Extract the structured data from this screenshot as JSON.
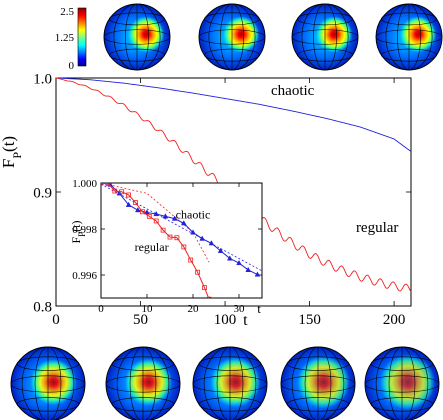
{
  "colors": {
    "chaotic": "#2222dd",
    "regular": "#ee2222",
    "axis": "#000000"
  },
  "colorbar": {
    "tick_labels": [
      "2.5",
      "1.25",
      "0"
    ],
    "values": [
      2.5,
      1.25,
      0
    ],
    "colormap": "jet"
  },
  "chart_data": [
    {
      "type": "line",
      "xlabel": "t",
      "ylabel": "F_P(t)",
      "ylabel_main": "F",
      "ylabel_sub": "P",
      "ylabel_tail": "(t)",
      "xlim": [
        0,
        210
      ],
      "ylim": [
        0.8,
        1.0
      ],
      "x_ticks": [
        0,
        50,
        100,
        150,
        200
      ],
      "x_tick_labels": [
        "0",
        "50",
        "100",
        "150",
        "200"
      ],
      "x_axis_label_at": 112,
      "y_ticks": [
        0.8,
        0.9,
        1.0
      ],
      "y_tick_labels": [
        "0.8",
        "0.9",
        "1.0"
      ],
      "series": [
        {
          "name": "chaotic",
          "style": "smooth",
          "points": [
            [
              0,
              1.0
            ],
            [
              20,
              0.9985
            ],
            [
              40,
              0.9955
            ],
            [
              60,
              0.9915
            ],
            [
              80,
              0.987
            ],
            [
              100,
              0.982
            ],
            [
              120,
              0.977
            ],
            [
              140,
              0.971
            ],
            [
              160,
              0.9645
            ],
            [
              180,
              0.957
            ],
            [
              200,
              0.9465
            ],
            [
              210,
              0.9355
            ]
          ]
        },
        {
          "name": "regular",
          "style": "oscillating",
          "points": [
            [
              0,
              1.0
            ],
            [
              10,
              0.9965
            ],
            [
              20,
              0.9915
            ],
            [
              30,
              0.9845
            ],
            [
              40,
              0.976
            ],
            [
              50,
              0.966
            ],
            [
              60,
              0.955
            ],
            [
              70,
              0.943
            ],
            [
              80,
              0.93
            ],
            [
              90,
              0.917
            ],
            [
              100,
              0.904
            ],
            [
              110,
              0.891
            ],
            [
              120,
              0.878
            ],
            [
              130,
              0.866
            ],
            [
              140,
              0.855
            ],
            [
              150,
              0.8455
            ],
            [
              160,
              0.8375
            ],
            [
              170,
              0.831
            ],
            [
              180,
              0.8255
            ],
            [
              190,
              0.821
            ],
            [
              200,
              0.8175
            ],
            [
              210,
              0.815
            ]
          ]
        }
      ],
      "annotations": [
        {
          "text": "chaotic",
          "x": 140,
          "y": 0.985
        },
        {
          "text": "regular",
          "x": 190,
          "y": 0.865
        }
      ]
    },
    {
      "type": "line",
      "xlabel": "t",
      "ylabel": "F_P(t)",
      "ylabel_main": "F",
      "ylabel_sub": "P",
      "ylabel_tail": "(t)",
      "xlim": [
        0,
        35
      ],
      "ylim": [
        0.995,
        1.0
      ],
      "x_ticks": [
        0,
        10,
        20,
        30
      ],
      "x_tick_labels": [
        "0",
        "10",
        "20",
        "30"
      ],
      "x_axis_label_at": 35,
      "y_ticks": [
        0.996,
        0.998,
        1.0
      ],
      "y_tick_labels": [
        "0.996",
        "0.998",
        "1.000"
      ],
      "series": [
        {
          "name": "chaotic",
          "marker": "triangle",
          "points": [
            [
              0,
              1.0
            ],
            [
              2,
              0.99993
            ],
            [
              4,
              0.99955
            ],
            [
              6,
              0.99905
            ],
            [
              8,
              0.99882
            ],
            [
              10,
              0.99872
            ],
            [
              12,
              0.99865
            ],
            [
              14,
              0.99855
            ],
            [
              16,
              0.99845
            ],
            [
              18,
              0.99825
            ],
            [
              20,
              0.99785
            ],
            [
              22,
              0.99758
            ],
            [
              24,
              0.99738
            ],
            [
              26,
              0.99705
            ],
            [
              28,
              0.99672
            ],
            [
              30,
              0.99652
            ],
            [
              32,
              0.99622
            ],
            [
              34,
              0.99602
            ]
          ]
        },
        {
          "name": "regular",
          "marker": "square",
          "points": [
            [
              0,
              1.0
            ],
            [
              1.5,
              0.99998
            ],
            [
              3,
              0.99965
            ],
            [
              4.5,
              0.99962
            ],
            [
              6,
              0.99948
            ],
            [
              7.5,
              0.99915
            ],
            [
              9,
              0.99875
            ],
            [
              10.5,
              0.99855
            ],
            [
              12,
              0.99835
            ],
            [
              13.5,
              0.99795
            ],
            [
              15,
              0.99765
            ],
            [
              16.5,
              0.99762
            ],
            [
              18,
              0.99722
            ],
            [
              19.5,
              0.99665
            ],
            [
              21,
              0.99612
            ],
            [
              22.5,
              0.99545
            ],
            [
              23.5,
              0.99495
            ]
          ]
        }
      ],
      "fits": [
        {
          "series": "chaotic",
          "points": [
            [
              0,
              0.99995
            ],
            [
              35,
              0.99618
            ]
          ]
        },
        {
          "series": "regular",
          "points": [
            [
              0,
              1.0
            ],
            [
              10,
              0.99955
            ],
            [
              20,
              0.99785
            ],
            [
              23.5,
              0.99655
            ]
          ]
        }
      ],
      "annotations": [
        {
          "text": "chaotic",
          "x": 20,
          "y": 0.99845
        },
        {
          "text": "regular",
          "x": 11,
          "y": 0.99705
        }
      ]
    }
  ],
  "spheres": {
    "top": [
      {
        "intensity": 1.0
      },
      {
        "intensity": 1.0
      },
      {
        "intensity": 1.0
      },
      {
        "intensity": 1.0
      }
    ],
    "bottom": [
      {
        "intensity": 0.8
      },
      {
        "intensity": 0.75
      },
      {
        "intensity": 0.65
      },
      {
        "intensity": 0.55
      },
      {
        "intensity": 0.45
      }
    ]
  }
}
